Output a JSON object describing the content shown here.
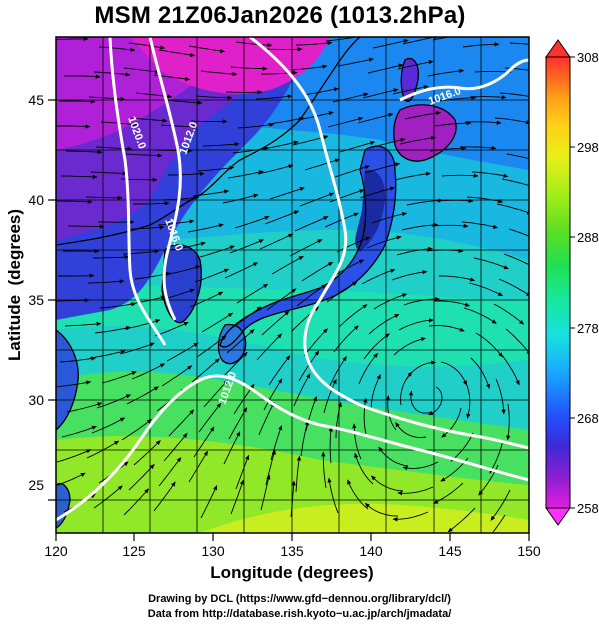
{
  "title": "MSM 21Z06Jan2026 (1013.2hPa)",
  "x_axis": {
    "label": "Longitude (degrees)",
    "ticks": [
      "120",
      "125",
      "130",
      "135",
      "140",
      "145",
      "150"
    ],
    "tick_values": [
      120,
      125,
      130,
      135,
      140,
      145,
      150
    ],
    "range": [
      120,
      150
    ]
  },
  "y_axis": {
    "label": "Latitude  (degrees)",
    "ticks": [
      "25",
      "30",
      "35",
      "40",
      "45"
    ],
    "tick_values": [
      25,
      30,
      35,
      40,
      45
    ],
    "range": [
      22.4,
      47.6
    ]
  },
  "colorbar": {
    "ticks": [
      "258",
      "268",
      "278",
      "288",
      "298",
      "308"
    ],
    "tick_values": [
      258,
      268,
      278,
      288,
      298,
      308
    ],
    "range": [
      258,
      308
    ],
    "colors": [
      "#e01ee0",
      "#8a1ed0",
      "#3a2ad8",
      "#2255ff",
      "#1aa8ff",
      "#18e0e0",
      "#18e8a0",
      "#20e050",
      "#60e020",
      "#a8ee18",
      "#e8f018",
      "#ffd018",
      "#ffa018",
      "#ff6020",
      "#ff3030"
    ]
  },
  "isobars": [
    {
      "label": "1020.0"
    },
    {
      "label": "1012.0"
    },
    {
      "label": "1016.0"
    },
    {
      "label": "1016.0"
    },
    {
      "label": "1012.0"
    }
  ],
  "credits": {
    "line1": "Drawing by DCL (https://www.gfd−dennou.org/library/dcl/)",
    "line2": "Data from http://database.rish.kyoto−u.ac.jp/arch/jmadata/"
  },
  "colors": {
    "land_overlay": "#0b1a70",
    "isobar": "#ffffff",
    "streamline": "#000000"
  }
}
